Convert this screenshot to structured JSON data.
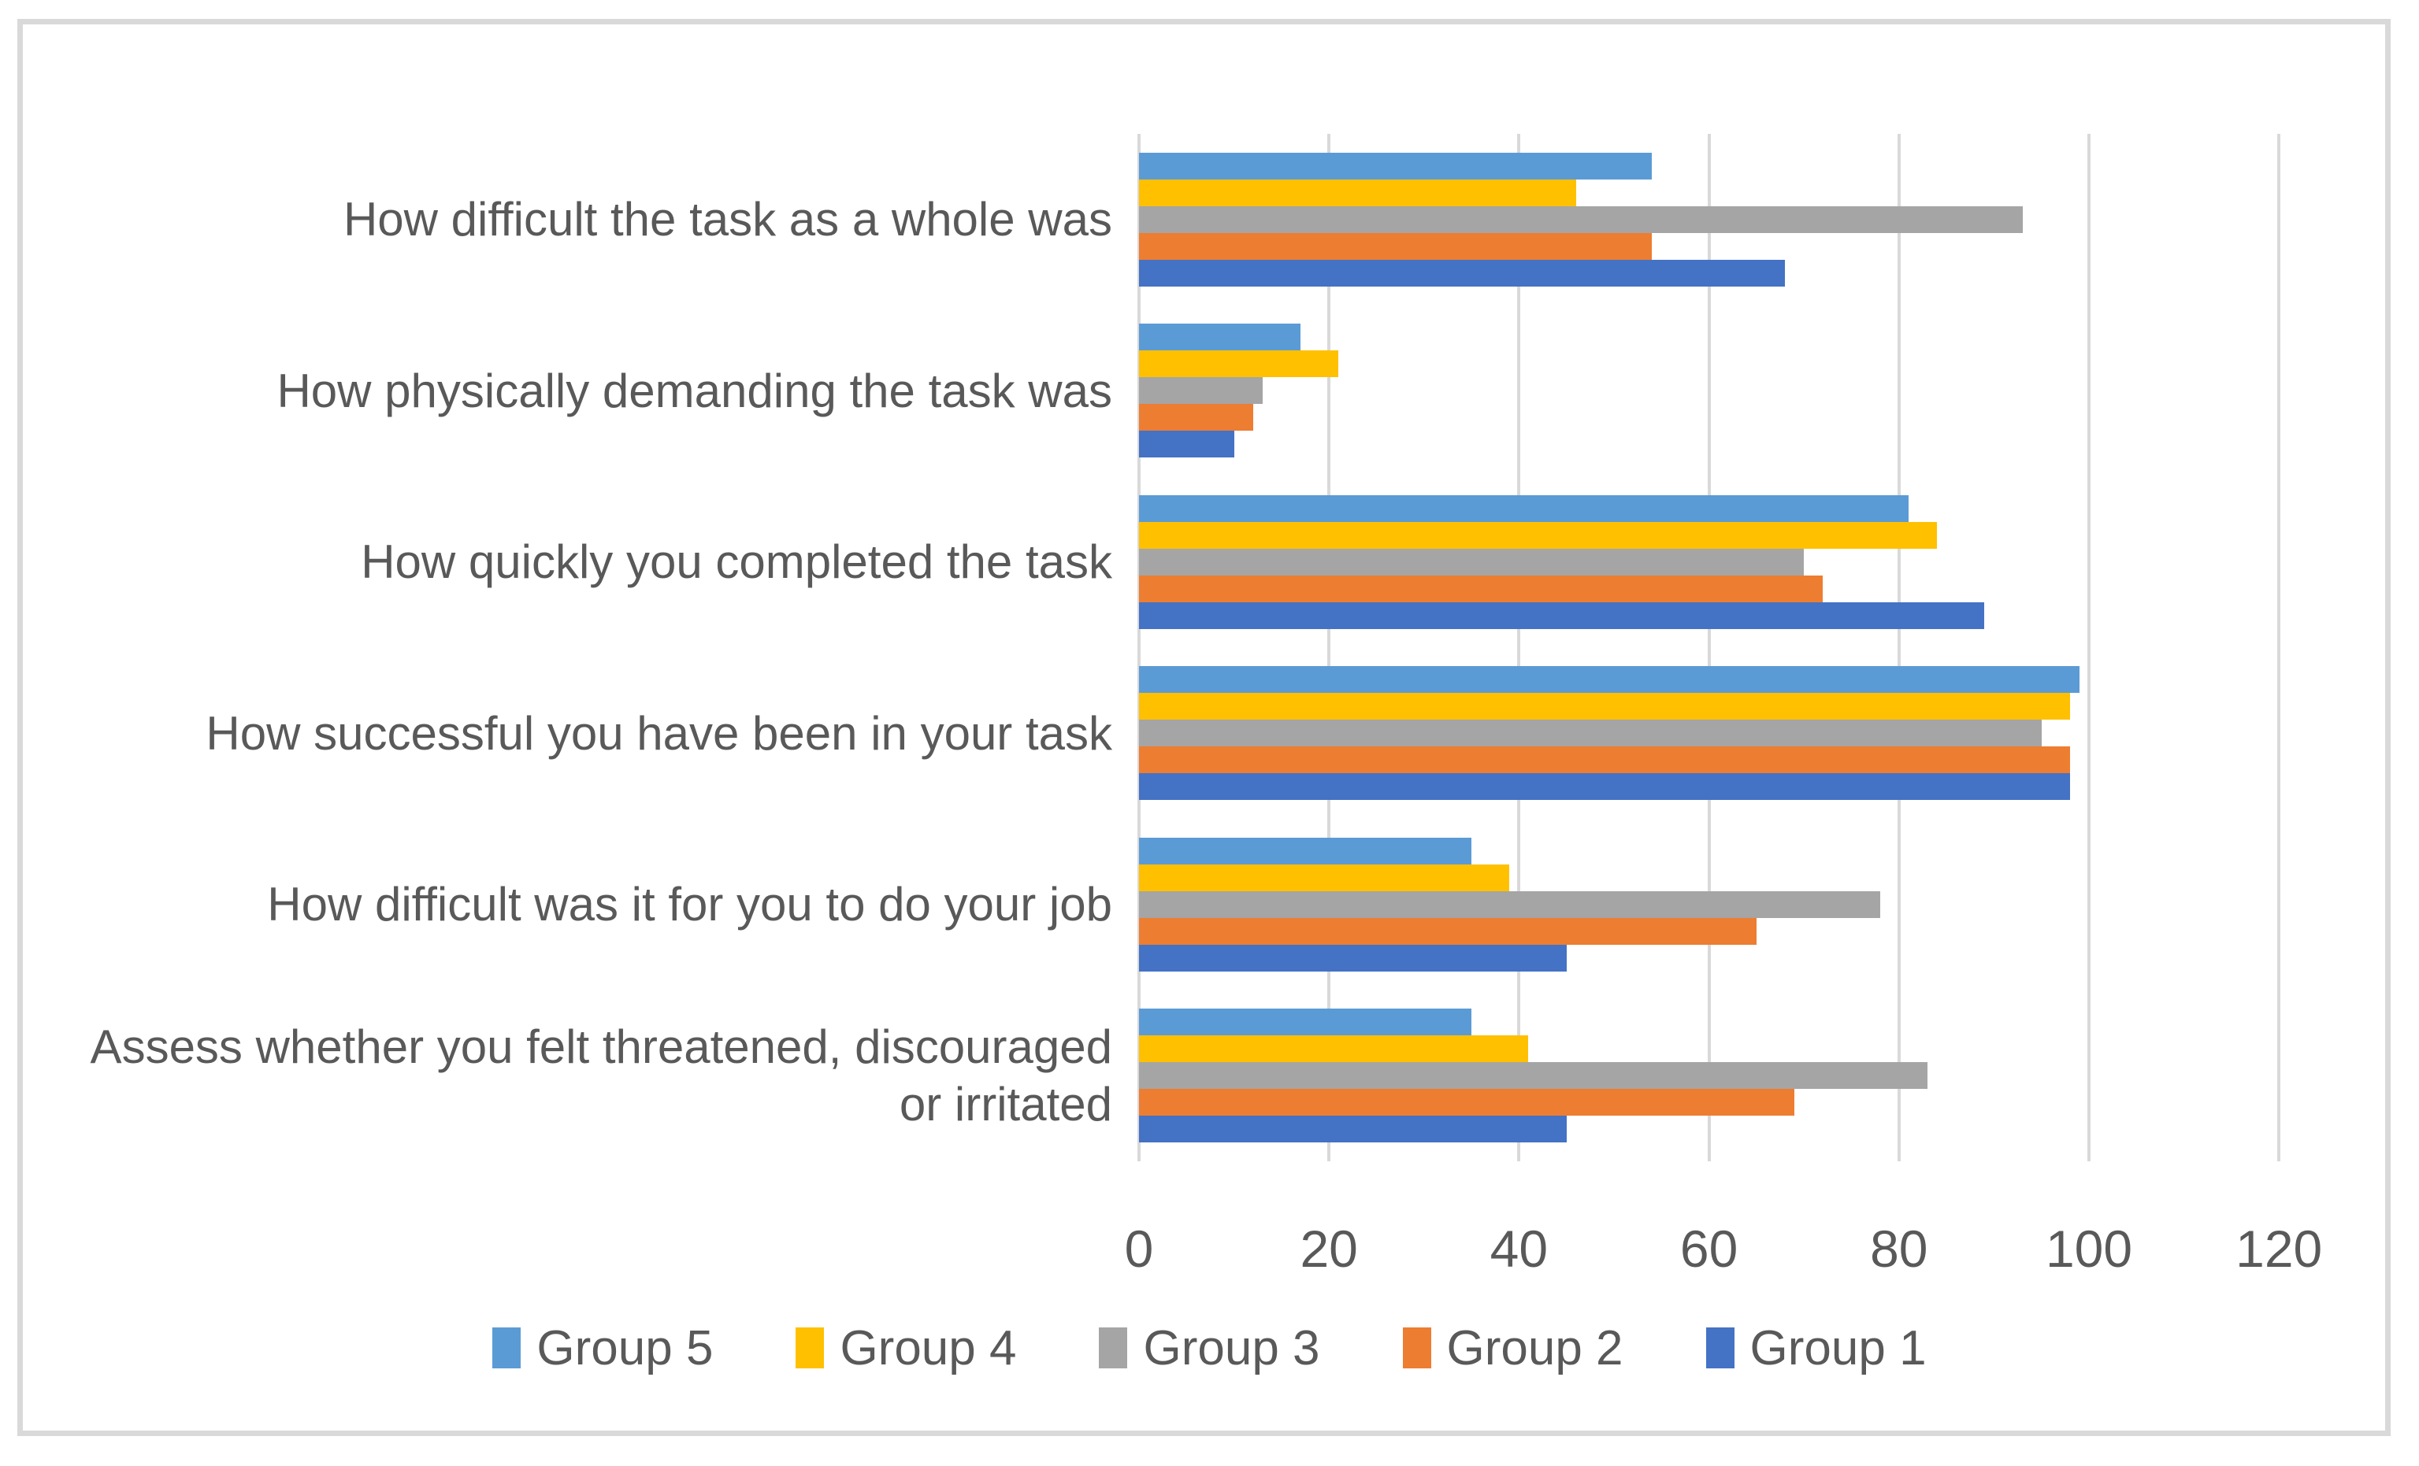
{
  "chart_data": {
    "type": "bar",
    "orientation": "horizontal",
    "title": "",
    "categories": [
      "How difficult the task as a whole was",
      "How physically demanding the task was",
      "How quickly you completed the task",
      "How successful you have been in your task",
      "How difficult was it for you to do your job",
      "Assess whether you felt threatened, discouraged or irritated"
    ],
    "series": [
      {
        "name": "Group 1",
        "color": "#4472C4",
        "values": [
          68,
          10,
          89,
          98,
          45,
          45
        ]
      },
      {
        "name": "Group 2",
        "color": "#ED7D31",
        "values": [
          54,
          12,
          72,
          98,
          65,
          69
        ]
      },
      {
        "name": "Group 3",
        "color": "#A5A5A5",
        "values": [
          93,
          13,
          70,
          95,
          78,
          83
        ]
      },
      {
        "name": "Group 4",
        "color": "#FFC000",
        "values": [
          46,
          21,
          84,
          98,
          39,
          41
        ]
      },
      {
        "name": "Group 5",
        "color": "#5B9BD5",
        "values": [
          54,
          17,
          81,
          99,
          35,
          35
        ]
      }
    ],
    "series_draw_order_top_to_bottom": [
      "Group 5",
      "Group 4",
      "Group 3",
      "Group 2",
      "Group 1"
    ],
    "x_axis": {
      "range": [
        0,
        120
      ],
      "ticks": [
        0,
        20,
        40,
        60,
        80,
        100,
        120
      ]
    },
    "grid": true,
    "legend": {
      "position": "bottom",
      "items": [
        {
          "label": "Group 5",
          "color": "#5B9BD5"
        },
        {
          "label": "Group 4",
          "color": "#FFC000"
        },
        {
          "label": "Group 3",
          "color": "#A5A5A5"
        },
        {
          "label": "Group 2",
          "color": "#ED7D31"
        },
        {
          "label": "Group 1",
          "color": "#4472C4"
        }
      ]
    }
  },
  "colors": {
    "text": "#595959",
    "gridline": "#D9D9D9",
    "frame_border": "#D9D9D9",
    "background": "#FFFFFF"
  }
}
